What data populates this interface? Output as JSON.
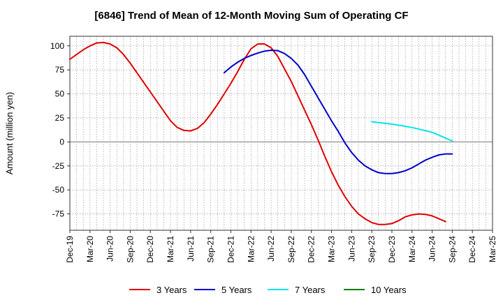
{
  "chart_data": {
    "type": "line",
    "title": "[6846]  Trend of Mean of 12-Month Moving Sum of Operating CF",
    "xlabel": "",
    "ylabel": "Amount (million yen)",
    "ylim": [
      -92,
      110
    ],
    "yticks": [
      100,
      75,
      50,
      25,
      0,
      -25,
      -50,
      -75
    ],
    "ytick_labels": [
      "100",
      "75",
      "50",
      "25",
      "0",
      "-25",
      "-50",
      "-75"
    ],
    "x_categories": [
      "Dec-19",
      "Mar-20",
      "Jun-20",
      "Sep-20",
      "Dec-20",
      "Mar-21",
      "Jun-21",
      "Sep-21",
      "Dec-21",
      "Mar-22",
      "Jun-22",
      "Sep-22",
      "Dec-22",
      "Mar-23",
      "Jun-23",
      "Sep-23",
      "Dec-23",
      "Mar-24",
      "Jun-24",
      "Sep-24",
      "Dec-24",
      "Mar-25"
    ],
    "grid": true,
    "series": [
      {
        "name": "3 Years",
        "color": "#e00000",
        "points": [
          [
            "Dec-19",
            86
          ],
          [
            "Jan-20",
            91
          ],
          [
            "Feb-20",
            96
          ],
          [
            "Mar-20",
            100
          ],
          [
            "Apr-20",
            103
          ],
          [
            "May-20",
            103.5
          ],
          [
            "Jun-20",
            102
          ],
          [
            "Jul-20",
            98
          ],
          [
            "Aug-20",
            91
          ],
          [
            "Sep-20",
            82
          ],
          [
            "Oct-20",
            72
          ],
          [
            "Nov-20",
            62
          ],
          [
            "Dec-20",
            52
          ],
          [
            "Jan-21",
            42
          ],
          [
            "Feb-21",
            32
          ],
          [
            "Mar-21",
            22
          ],
          [
            "Apr-21",
            15
          ],
          [
            "May-21",
            12
          ],
          [
            "Jun-21",
            11.5
          ],
          [
            "Jul-21",
            14
          ],
          [
            "Aug-21",
            20
          ],
          [
            "Sep-21",
            29
          ],
          [
            "Oct-21",
            39
          ],
          [
            "Nov-21",
            50
          ],
          [
            "Dec-21",
            61
          ],
          [
            "Jan-22",
            73
          ],
          [
            "Feb-22",
            86
          ],
          [
            "Mar-22",
            97
          ],
          [
            "Apr-22",
            102
          ],
          [
            "May-22",
            102
          ],
          [
            "Jun-22",
            98
          ],
          [
            "Jul-22",
            89
          ],
          [
            "Aug-22",
            76
          ],
          [
            "Sep-22",
            63
          ],
          [
            "Oct-22",
            48
          ],
          [
            "Nov-22",
            33
          ],
          [
            "Dec-22",
            18
          ],
          [
            "Jan-23",
            2
          ],
          [
            "Feb-23",
            -15
          ],
          [
            "Mar-23",
            -31
          ],
          [
            "Apr-23",
            -45
          ],
          [
            "May-23",
            -57
          ],
          [
            "Jun-23",
            -67
          ],
          [
            "Jul-23",
            -75
          ],
          [
            "Aug-23",
            -80
          ],
          [
            "Sep-23",
            -84
          ],
          [
            "Oct-23",
            -86
          ],
          [
            "Nov-23",
            -86
          ],
          [
            "Dec-23",
            -85
          ],
          [
            "Jan-24",
            -82
          ],
          [
            "Feb-24",
            -78
          ],
          [
            "Mar-24",
            -76
          ],
          [
            "Apr-24",
            -75
          ],
          [
            "May-24",
            -75.5
          ],
          [
            "Jun-24",
            -77
          ],
          [
            "Jul-24",
            -80
          ],
          [
            "Aug-24",
            -83
          ]
        ]
      },
      {
        "name": "5 Years",
        "color": "#0000cc",
        "points": [
          [
            "Nov-21",
            72
          ],
          [
            "Dec-21",
            78
          ],
          [
            "Jan-22",
            83
          ],
          [
            "Feb-22",
            87
          ],
          [
            "Mar-22",
            90
          ],
          [
            "Apr-22",
            92.5
          ],
          [
            "May-22",
            94.5
          ],
          [
            "Jun-22",
            95.5
          ],
          [
            "Jul-22",
            95
          ],
          [
            "Aug-22",
            92
          ],
          [
            "Sep-22",
            87
          ],
          [
            "Oct-22",
            80
          ],
          [
            "Nov-22",
            70
          ],
          [
            "Dec-22",
            58
          ],
          [
            "Jan-23",
            46
          ],
          [
            "Feb-23",
            34
          ],
          [
            "Mar-23",
            22
          ],
          [
            "Apr-23",
            11
          ],
          [
            "May-23",
            -1
          ],
          [
            "Jun-23",
            -11
          ],
          [
            "Jul-23",
            -19
          ],
          [
            "Aug-23",
            -25
          ],
          [
            "Sep-23",
            -29
          ],
          [
            "Oct-23",
            -32
          ],
          [
            "Nov-23",
            -33
          ],
          [
            "Dec-23",
            -33
          ],
          [
            "Jan-24",
            -32
          ],
          [
            "Feb-24",
            -30
          ],
          [
            "Mar-24",
            -27
          ],
          [
            "Apr-24",
            -23
          ],
          [
            "May-24",
            -19
          ],
          [
            "Jun-24",
            -16
          ],
          [
            "Jul-24",
            -13.5
          ],
          [
            "Aug-24",
            -12.5
          ],
          [
            "Sep-24",
            -12.5
          ]
        ]
      },
      {
        "name": "7 Years",
        "color": "#00e5ee",
        "points": [
          [
            "Sep-23",
            21
          ],
          [
            "Dec-23",
            18.5
          ],
          [
            "Mar-24",
            15
          ],
          [
            "Jun-24",
            10
          ],
          [
            "Sep-24",
            1
          ]
        ]
      },
      {
        "name": "10 Years",
        "color": "#008000",
        "points": []
      }
    ]
  }
}
